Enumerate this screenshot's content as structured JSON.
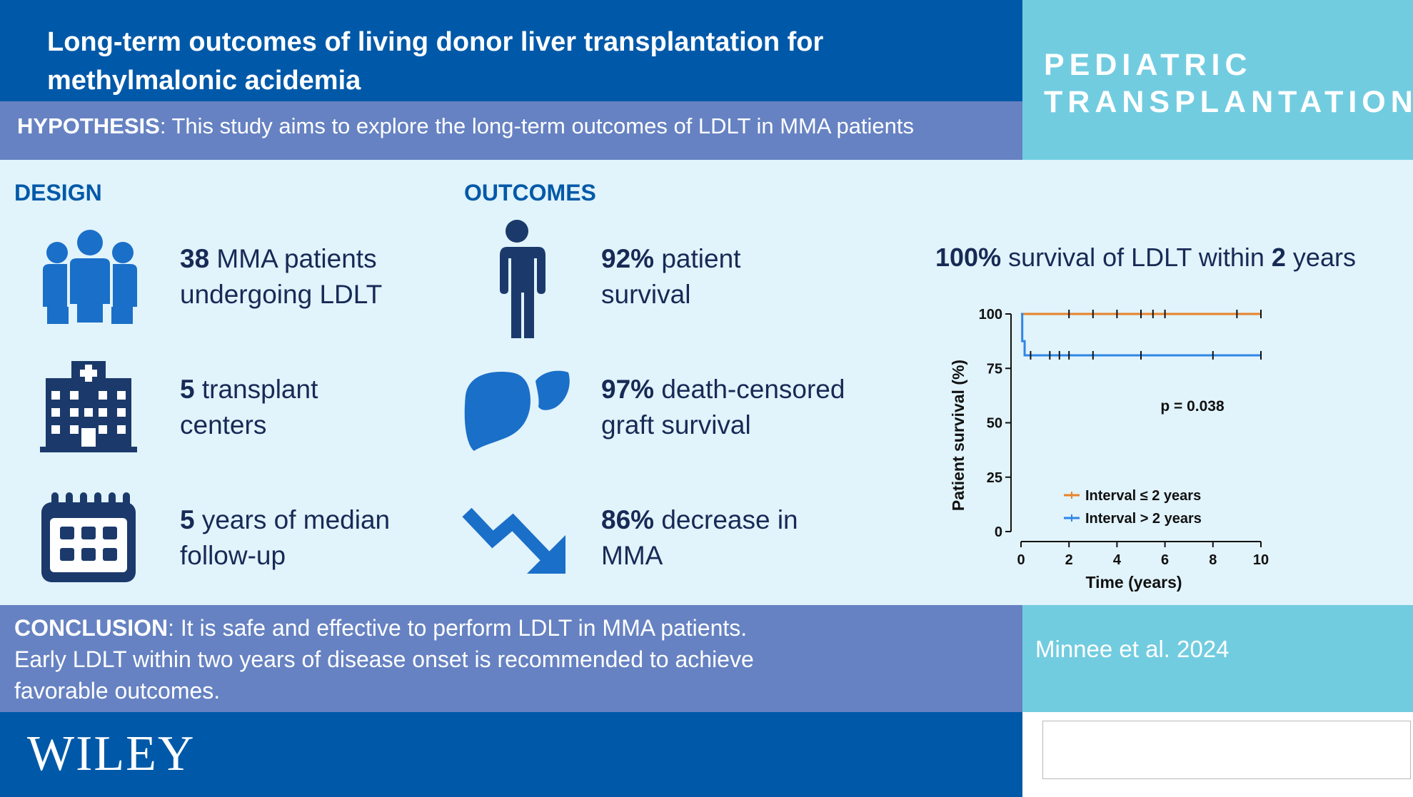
{
  "header": {
    "title": "Long-term outcomes of living donor liver transplantation for methylmalonic acidemia",
    "hypothesis_label": "HYPOTHESIS",
    "hypothesis_text": ": This study aims to explore the long-term outcomes of LDLT in MMA patients",
    "journal_line1": "PEDIATRIC",
    "journal_line2": "TRANSPLANTATION"
  },
  "design": {
    "heading": "DESIGN",
    "items": [
      {
        "icon": "people-group-icon",
        "value": "38",
        "line1_rest": " MMA patients",
        "line2": "undergoing LDLT"
      },
      {
        "icon": "hospital-icon",
        "value": "5",
        "line1_rest": " transplant",
        "line2": "centers"
      },
      {
        "icon": "calendar-icon",
        "value": "5",
        "line1_rest": " years of median",
        "line2": "follow-up"
      }
    ]
  },
  "outcomes": {
    "heading": "OUTCOMES",
    "items": [
      {
        "icon": "person-icon",
        "value": "92%",
        "line1_rest": " patient",
        "line2": "survival"
      },
      {
        "icon": "liver-icon",
        "value": "97%",
        "line1_rest": " death-censored",
        "line2": "graft survival"
      },
      {
        "icon": "trend-down-arrow-icon",
        "value": "86%",
        "line1_rest": " decrease in",
        "line2": "MMA"
      }
    ]
  },
  "survival_headline": {
    "value": "100%",
    "middle": " survival of LDLT within ",
    "years": "2",
    "end": " years"
  },
  "chart_data": {
    "type": "line",
    "xlabel": "Time (years)",
    "ylabel": "Patient survival (%)",
    "xlim": [
      0,
      10
    ],
    "ylim": [
      0,
      100
    ],
    "xticks": [
      0,
      2,
      4,
      6,
      8,
      10
    ],
    "yticks": [
      0,
      25,
      50,
      75,
      100
    ],
    "annotation": "p = 0.038",
    "legend_position": "bottom-center",
    "series": [
      {
        "name": "Interval ≤ 2 years",
        "color": "#e8832a",
        "steps": [
          [
            0,
            100
          ],
          [
            10,
            100
          ]
        ],
        "censor_marks": [
          2,
          3,
          4,
          5,
          5.5,
          6,
          9,
          10
        ]
      },
      {
        "name": "Interval > 2 years",
        "color": "#2f86e6",
        "steps": [
          [
            0,
            100
          ],
          [
            0.05,
            87.5
          ],
          [
            0.15,
            81
          ],
          [
            10,
            81
          ]
        ],
        "censor_marks": [
          0.4,
          1.2,
          1.6,
          2,
          3,
          5,
          8,
          10
        ]
      }
    ]
  },
  "conclusion": {
    "label": "CONCLUSION",
    "text_line1": ": It is safe and effective to perform LDLT in MMA patients.",
    "text_line2": "Early LDLT within two years of disease onset is recommended to achieve",
    "text_line3": "favorable outcomes."
  },
  "citation": "Minnee et al. 2024",
  "publisher": "WILEY",
  "colors": {
    "primary_blue": "#0059a8",
    "periwinkle": "#6682c2",
    "light_cyan": "#72cce0",
    "pale_background": "#e1f3fb",
    "navy_text": "#172a55",
    "icon_blue": "#1a6fc8",
    "icon_navy": "#1b3a6b"
  }
}
